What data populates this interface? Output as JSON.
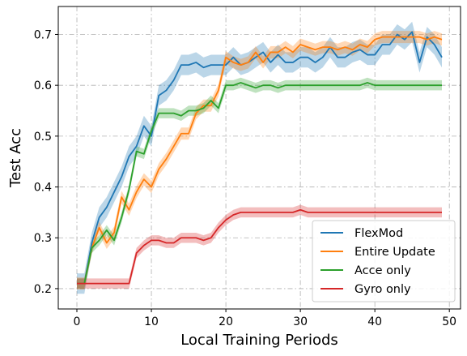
{
  "chart_data": {
    "type": "line",
    "title": "",
    "xlabel": "Local Training Periods",
    "ylabel": "Test Acc",
    "xlim": [
      -2.5,
      51.5
    ],
    "ylim": [
      0.16,
      0.755
    ],
    "xticks": [
      0,
      10,
      20,
      30,
      40,
      50
    ],
    "yticks": [
      0.2,
      0.3,
      0.4,
      0.5,
      0.6,
      0.7
    ],
    "xtick_labels": [
      "0",
      "10",
      "20",
      "30",
      "40",
      "50"
    ],
    "ytick_labels": [
      "0.2",
      "0.3",
      "0.4",
      "0.5",
      "0.6",
      "0.7"
    ],
    "grid": true,
    "legend_position": "lower-right",
    "x": [
      0,
      1,
      2,
      3,
      4,
      5,
      6,
      7,
      8,
      9,
      10,
      11,
      12,
      13,
      14,
      15,
      16,
      17,
      18,
      19,
      20,
      21,
      22,
      23,
      24,
      25,
      26,
      27,
      28,
      29,
      30,
      31,
      32,
      33,
      34,
      35,
      36,
      37,
      38,
      39,
      40,
      41,
      42,
      43,
      44,
      45,
      46,
      47,
      48,
      49
    ],
    "series": [
      {
        "name": "FlexMod",
        "color": "#1f77b4",
        "band": 0.02,
        "values": [
          0.21,
          0.21,
          0.29,
          0.34,
          0.36,
          0.39,
          0.42,
          0.46,
          0.48,
          0.52,
          0.5,
          0.58,
          0.59,
          0.61,
          0.64,
          0.64,
          0.645,
          0.635,
          0.64,
          0.64,
          0.64,
          0.655,
          0.64,
          0.645,
          0.655,
          0.665,
          0.645,
          0.66,
          0.645,
          0.645,
          0.655,
          0.655,
          0.645,
          0.655,
          0.675,
          0.655,
          0.655,
          0.665,
          0.67,
          0.66,
          0.66,
          0.68,
          0.68,
          0.7,
          0.69,
          0.705,
          0.645,
          0.695,
          0.68,
          0.655
        ]
      },
      {
        "name": "Entire Update",
        "color": "#ff7f0e",
        "band": 0.012,
        "values": [
          0.21,
          0.21,
          0.28,
          0.32,
          0.29,
          0.31,
          0.38,
          0.355,
          0.39,
          0.415,
          0.4,
          0.435,
          0.455,
          0.48,
          0.505,
          0.505,
          0.545,
          0.56,
          0.56,
          0.59,
          0.655,
          0.645,
          0.64,
          0.645,
          0.665,
          0.645,
          0.665,
          0.665,
          0.675,
          0.665,
          0.68,
          0.675,
          0.67,
          0.675,
          0.675,
          0.67,
          0.675,
          0.67,
          0.68,
          0.675,
          0.69,
          0.695,
          0.695,
          0.695,
          0.695,
          0.695,
          0.695,
          0.69,
          0.695,
          0.69
        ]
      },
      {
        "name": "Acce only",
        "color": "#2ca02c",
        "band": 0.01,
        "values": [
          0.21,
          0.21,
          0.28,
          0.295,
          0.315,
          0.295,
          0.34,
          0.395,
          0.47,
          0.465,
          0.51,
          0.545,
          0.545,
          0.545,
          0.54,
          0.55,
          0.55,
          0.555,
          0.57,
          0.555,
          0.6,
          0.6,
          0.605,
          0.6,
          0.595,
          0.6,
          0.6,
          0.595,
          0.6,
          0.6,
          0.6,
          0.6,
          0.6,
          0.6,
          0.6,
          0.6,
          0.6,
          0.6,
          0.6,
          0.605,
          0.6,
          0.6,
          0.6,
          0.6,
          0.6,
          0.6,
          0.6,
          0.6,
          0.6,
          0.6
        ]
      },
      {
        "name": "Gyro only",
        "color": "#d62728",
        "band": 0.01,
        "values": [
          0.21,
          0.21,
          0.21,
          0.21,
          0.21,
          0.21,
          0.21,
          0.21,
          0.27,
          0.285,
          0.295,
          0.295,
          0.29,
          0.29,
          0.3,
          0.3,
          0.3,
          0.295,
          0.3,
          0.32,
          0.335,
          0.345,
          0.35,
          0.35,
          0.35,
          0.35,
          0.35,
          0.35,
          0.35,
          0.35,
          0.355,
          0.35,
          0.35,
          0.35,
          0.35,
          0.35,
          0.35,
          0.35,
          0.35,
          0.35,
          0.35,
          0.35,
          0.35,
          0.35,
          0.35,
          0.35,
          0.35,
          0.35,
          0.35,
          0.35
        ]
      }
    ]
  }
}
